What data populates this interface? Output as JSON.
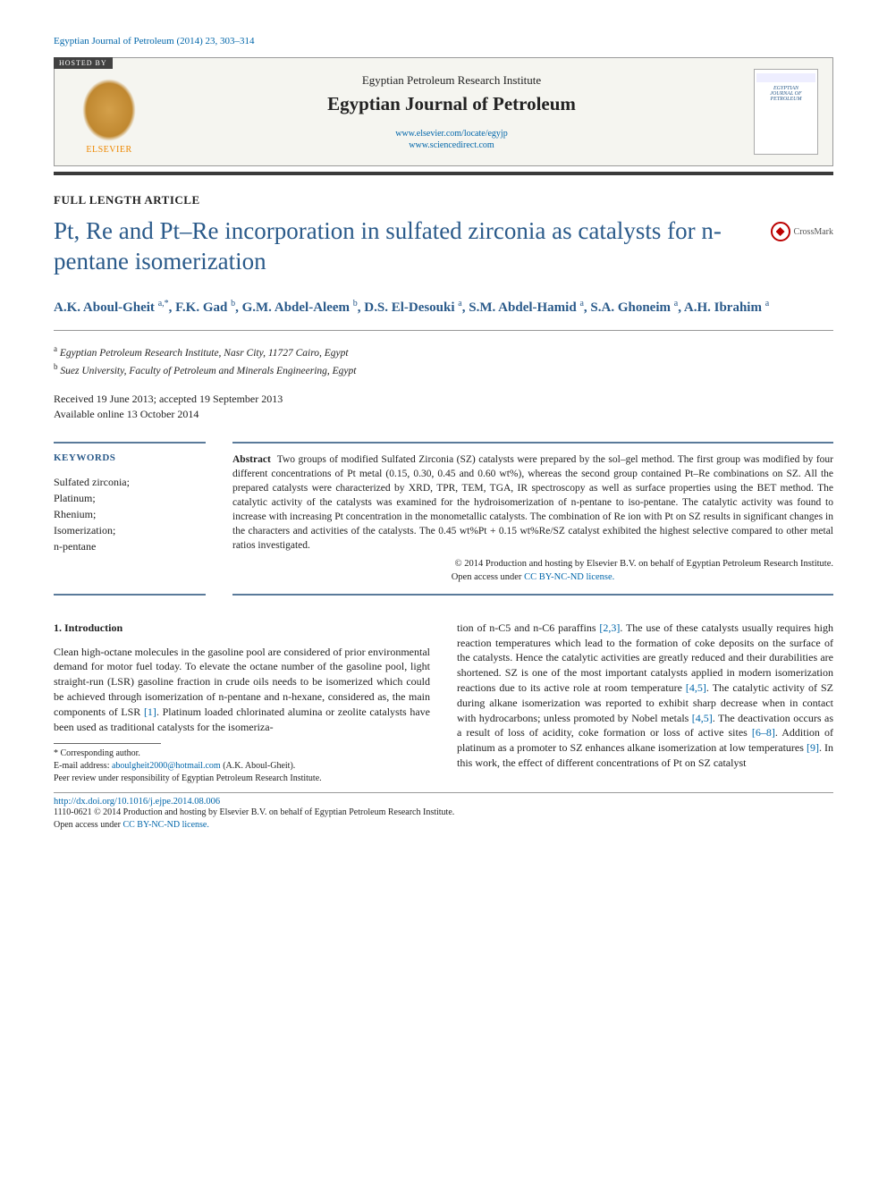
{
  "journal_ref": "Egyptian Journal of Petroleum (2014) 23, 303–314",
  "header": {
    "hosted_by": "HOSTED BY",
    "publisher_name": "ELSEVIER",
    "institute": "Egyptian Petroleum Research Institute",
    "journal_title": "Egyptian Journal of Petroleum",
    "link1": "www.elsevier.com/locate/egyjp",
    "link2": "www.sciencedirect.com",
    "cover_line1": "EGYPTIAN",
    "cover_line2": "JOURNAL OF",
    "cover_line3": "PETROLEUM"
  },
  "article_type": "FULL LENGTH ARTICLE",
  "title": "Pt, Re and Pt–Re incorporation in sulfated zirconia as catalysts for n-pentane isomerization",
  "crossmark_label": "CrossMark",
  "authors_html": "A.K. Aboul-Gheit <sup>a,*</sup>, F.K. Gad <sup>b</sup>, G.M. Abdel-Aleem <sup>b</sup>, D.S. El-Desouki <sup>a</sup>, S.M. Abdel-Hamid <sup>a</sup>, S.A. Ghoneim <sup>a</sup>, A.H. Ibrahim <sup>a</sup>",
  "affiliations": {
    "a": "Egyptian Petroleum Research Institute, Nasr City, 11727 Cairo, Egypt",
    "b": "Suez University, Faculty of Petroleum and Minerals Engineering, Egypt"
  },
  "dates": {
    "received_accepted": "Received 19 June 2013; accepted 19 September 2013",
    "online": "Available online 13 October 2014"
  },
  "keywords": {
    "label": "KEYWORDS",
    "items": [
      "Sulfated zirconia;",
      "Platinum;",
      "Rhenium;",
      "Isomerization;",
      "n-pentane"
    ]
  },
  "abstract": {
    "label": "Abstract",
    "text": "Two groups of modified Sulfated Zirconia (SZ) catalysts were prepared by the sol–gel method. The first group was modified by four different concentrations of Pt metal (0.15, 0.30, 0.45 and 0.60 wt%), whereas the second group contained Pt–Re combinations on SZ. All the prepared catalysts were characterized by XRD, TPR, TEM, TGA, IR spectroscopy as well as surface properties using the BET method. The catalytic activity of the catalysts was examined for the hydroisomerization of n-pentane to iso-pentane. The catalytic activity was found to increase with increasing Pt concentration in the monometallic catalysts. The combination of Re ion with Pt on SZ results in significant changes in the characters and activities of the catalysts. The 0.45 wt%Pt + 0.15 wt%Re/SZ catalyst exhibited the highest selective compared to other metal ratios investigated.",
    "copyright": "© 2014 Production and hosting by Elsevier B.V. on behalf of Egyptian Petroleum Research Institute.",
    "license_prefix": "Open access under ",
    "license_link": "CC BY-NC-ND license."
  },
  "section1": {
    "heading": "1. Introduction",
    "col1": "Clean high-octane molecules in the gasoline pool are considered of prior environmental demand for motor fuel today. To elevate the octane number of the gasoline pool, light straight-run (LSR) gasoline fraction in crude oils needs to be isomerized which could be achieved through isomerization of n-pentane and n-hexane, considered as, the main components of LSR [1]. Platinum loaded chlorinated alumina or zeolite catalysts have been used as traditional catalysts for the isomeriza-",
    "col2": "tion of n-C5 and n-C6 paraffins [2,3]. The use of these catalysts usually requires high reaction temperatures which lead to the formation of coke deposits on the surface of the catalysts. Hence the catalytic activities are greatly reduced and their durabilities are shortened. SZ is one of the most important catalysts applied in modern isomerization reactions due to its active role at room temperature [4,5]. The catalytic activity of SZ during alkane isomerization was reported to exhibit sharp decrease when in contact with hydrocarbons; unless promoted by Nobel metals [4,5]. The deactivation occurs as a result of loss of acidity, coke formation or loss of active sites [6–8]. Addition of platinum as a promoter to SZ enhances alkane isomerization at low temperatures [9]. In this work, the effect of different concentrations of Pt on SZ catalyst"
  },
  "footnotes": {
    "corresponding": "* Corresponding author.",
    "email_label": "E-mail address: ",
    "email": "aboulgheit2000@hotmail.com",
    "email_suffix": " (A.K. Aboul-Gheit).",
    "peer_review": "Peer review under responsibility of Egyptian Petroleum Research Institute."
  },
  "footer": {
    "doi": "http://dx.doi.org/10.1016/j.ejpe.2014.08.006",
    "issn_line": "1110-0621 © 2014 Production and hosting by Elsevier B.V. on behalf of Egyptian Petroleum Research Institute.",
    "license_prefix": "Open access under ",
    "license_link": "CC BY-NC-ND license."
  },
  "colors": {
    "link": "#0066aa",
    "heading": "#2a5a8a",
    "rule_dark": "#3a3a3a"
  }
}
